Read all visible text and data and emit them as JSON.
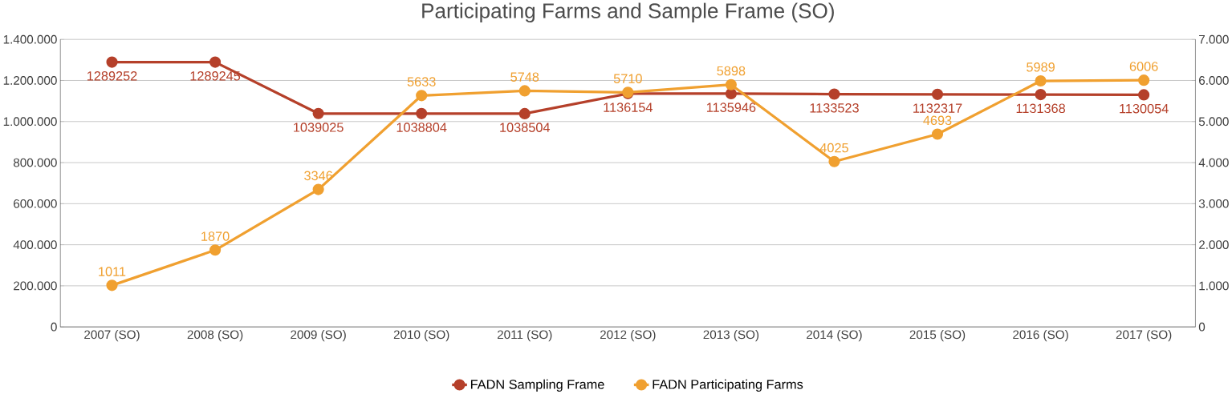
{
  "chart_data": {
    "type": "line",
    "title": "Participating Farms and Sample Frame (SO)",
    "categories": [
      "2007 (SO)",
      "2008 (SO)",
      "2009 (SO)",
      "2010 (SO)",
      "2011 (SO)",
      "2012 (SO)",
      "2013 (SO)",
      "2014 (SO)",
      "2015 (SO)",
      "2016 (SO)",
      "2017 (SO)"
    ],
    "series": [
      {
        "name": "FADN Sampling Frame",
        "color": "#b5402a",
        "values": [
          1289252,
          1289245,
          1039025,
          1038804,
          1038504,
          1136154,
          1135946,
          1133523,
          1132317,
          1131368,
          1130054
        ]
      },
      {
        "name": "FADN Participating Farms",
        "color": "#f0a030",
        "axis": "y2",
        "values": [
          1011,
          1870,
          3346,
          5633,
          5748,
          5710,
          5898,
          4025,
          4693,
          5989,
          6006
        ]
      }
    ],
    "ylim": [
      0,
      1400000
    ],
    "yticks": [
      0,
      {
        "value": 200000,
        "label": "200.000"
      },
      {
        "value": 400000,
        "label": "400.000"
      },
      {
        "value": 600000,
        "label": "600.000"
      },
      {
        "value": 800000,
        "label": "800.000"
      },
      {
        "value": 1000000,
        "label": "1.000.000"
      },
      {
        "value": 1200000,
        "label": "1.200.000"
      },
      {
        "value": 1400000,
        "label": "1.400.000"
      }
    ],
    "y2lim": [
      0,
      7000
    ],
    "y2ticks": [
      0,
      {
        "value": 1000,
        "label": "1.000"
      },
      {
        "value": 2000,
        "label": "2.000"
      },
      {
        "value": 3000,
        "label": "3.000"
      },
      {
        "value": 4000,
        "label": "4.000"
      },
      {
        "value": 5000,
        "label": "5.000"
      },
      {
        "value": 6000,
        "label": "6.000"
      },
      {
        "value": 7000,
        "label": "7.000"
      }
    ],
    "grid": "y",
    "legend": "bottom",
    "marker": "circle",
    "line_style": "solid",
    "data_labels": true
  }
}
